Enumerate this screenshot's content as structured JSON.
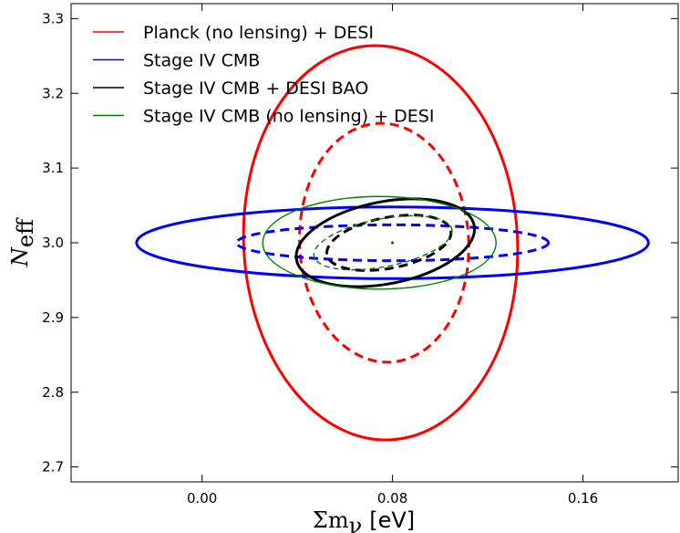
{
  "chart_data": {
    "type": "scatter",
    "title": "",
    "xlabel": "Σm_ν [eV]",
    "ylabel": "N_eff",
    "xlim": [
      -0.055,
      0.2
    ],
    "ylim": [
      2.68,
      3.32
    ],
    "x_ticks": [
      0.0,
      0.08,
      0.16
    ],
    "x_tick_labels": [
      "0.00",
      "0.08",
      "0.16"
    ],
    "y_ticks": [
      2.7,
      2.8,
      2.9,
      3.0,
      3.1,
      3.2,
      3.3
    ],
    "y_tick_labels": [
      "2.7",
      "2.8",
      "2.9",
      "3.0",
      "3.1",
      "3.2",
      "3.3"
    ],
    "grid": false,
    "legend_position": "top-left",
    "fiducial_point": {
      "x": 0.08,
      "y": 3.0
    },
    "series": [
      {
        "name": "Planck (no lensing) + DESI",
        "color": "#ff0000",
        "ellipses": [
          {
            "level": "outer",
            "line": "solid",
            "cx": 0.075,
            "cy": 3.0,
            "x_extent": [
              0.0175,
              0.1325
            ],
            "y_extent": [
              2.736,
              3.264
            ],
            "tilt": "slight"
          },
          {
            "level": "inner",
            "line": "dashed",
            "cx": 0.0765,
            "cy": 3.0,
            "x_extent": [
              0.0385,
              0.1095
            ],
            "y_extent": [
              2.84,
              3.16
            ],
            "tilt": "slight"
          }
        ]
      },
      {
        "name": "Stage IV CMB",
        "color": "#0000ff",
        "ellipses": [
          {
            "level": "outer",
            "line": "solid",
            "cx": 0.08,
            "cy": 3.0,
            "x_extent": [
              -0.0325,
              0.1825
            ],
            "y_extent": [
              2.952,
              3.048
            ],
            "tilt": "none"
          },
          {
            "level": "inner",
            "line": "dashed",
            "cx": 0.08,
            "cy": 3.0,
            "x_extent": [
              0.0105,
              0.1415
            ],
            "y_extent": [
              2.976,
              3.024
            ],
            "tilt": "none"
          }
        ]
      },
      {
        "name": "Stage IV CMB + DESI BAO",
        "color": "#000000",
        "ellipses": [
          {
            "level": "outer",
            "line": "solid",
            "cx": 0.077,
            "cy": 3.0,
            "x_extent": [
              0.0385,
              0.1145
            ],
            "y_extent": [
              2.945,
              3.055
            ],
            "tilt": "rising"
          },
          {
            "level": "inner",
            "line": "dashed",
            "cx": 0.0785,
            "cy": 3.0,
            "x_extent": [
              0.0515,
              0.1045
            ],
            "y_extent": [
              2.965,
              3.033
            ],
            "tilt": "rising"
          }
        ]
      },
      {
        "name": "Stage IV CMB (no lensing) + DESI",
        "color": "#008000",
        "ellipses": [
          {
            "level": "outer",
            "line": "solid",
            "cx": 0.0745,
            "cy": 3.0,
            "x_extent": [
              0.0255,
              0.1235
            ],
            "y_extent": [
              2.938,
              3.062
            ],
            "tilt": "none"
          },
          {
            "level": "inner",
            "line": "dashed",
            "cx": 0.076,
            "cy": 3.0,
            "x_extent": [
              0.0465,
              0.1055
            ],
            "y_extent": [
              2.968,
              3.032
            ],
            "tilt": "rising"
          }
        ]
      }
    ]
  },
  "legend": {
    "items": [
      {
        "label": "Planck (no lensing) + DESI",
        "color": "#ff0000"
      },
      {
        "label": "Stage IV CMB",
        "color": "#0000ff"
      },
      {
        "label": "Stage IV CMB + DESI BAO",
        "color": "#000000"
      },
      {
        "label": "Stage IV CMB (no lensing) + DESI",
        "color": "#008000"
      }
    ]
  },
  "axes": {
    "x_label_symbol": "Σm",
    "x_label_sub": "ν",
    "x_label_unit": "[eV]",
    "y_label_symbol": "N",
    "y_label_sub": "eff"
  }
}
